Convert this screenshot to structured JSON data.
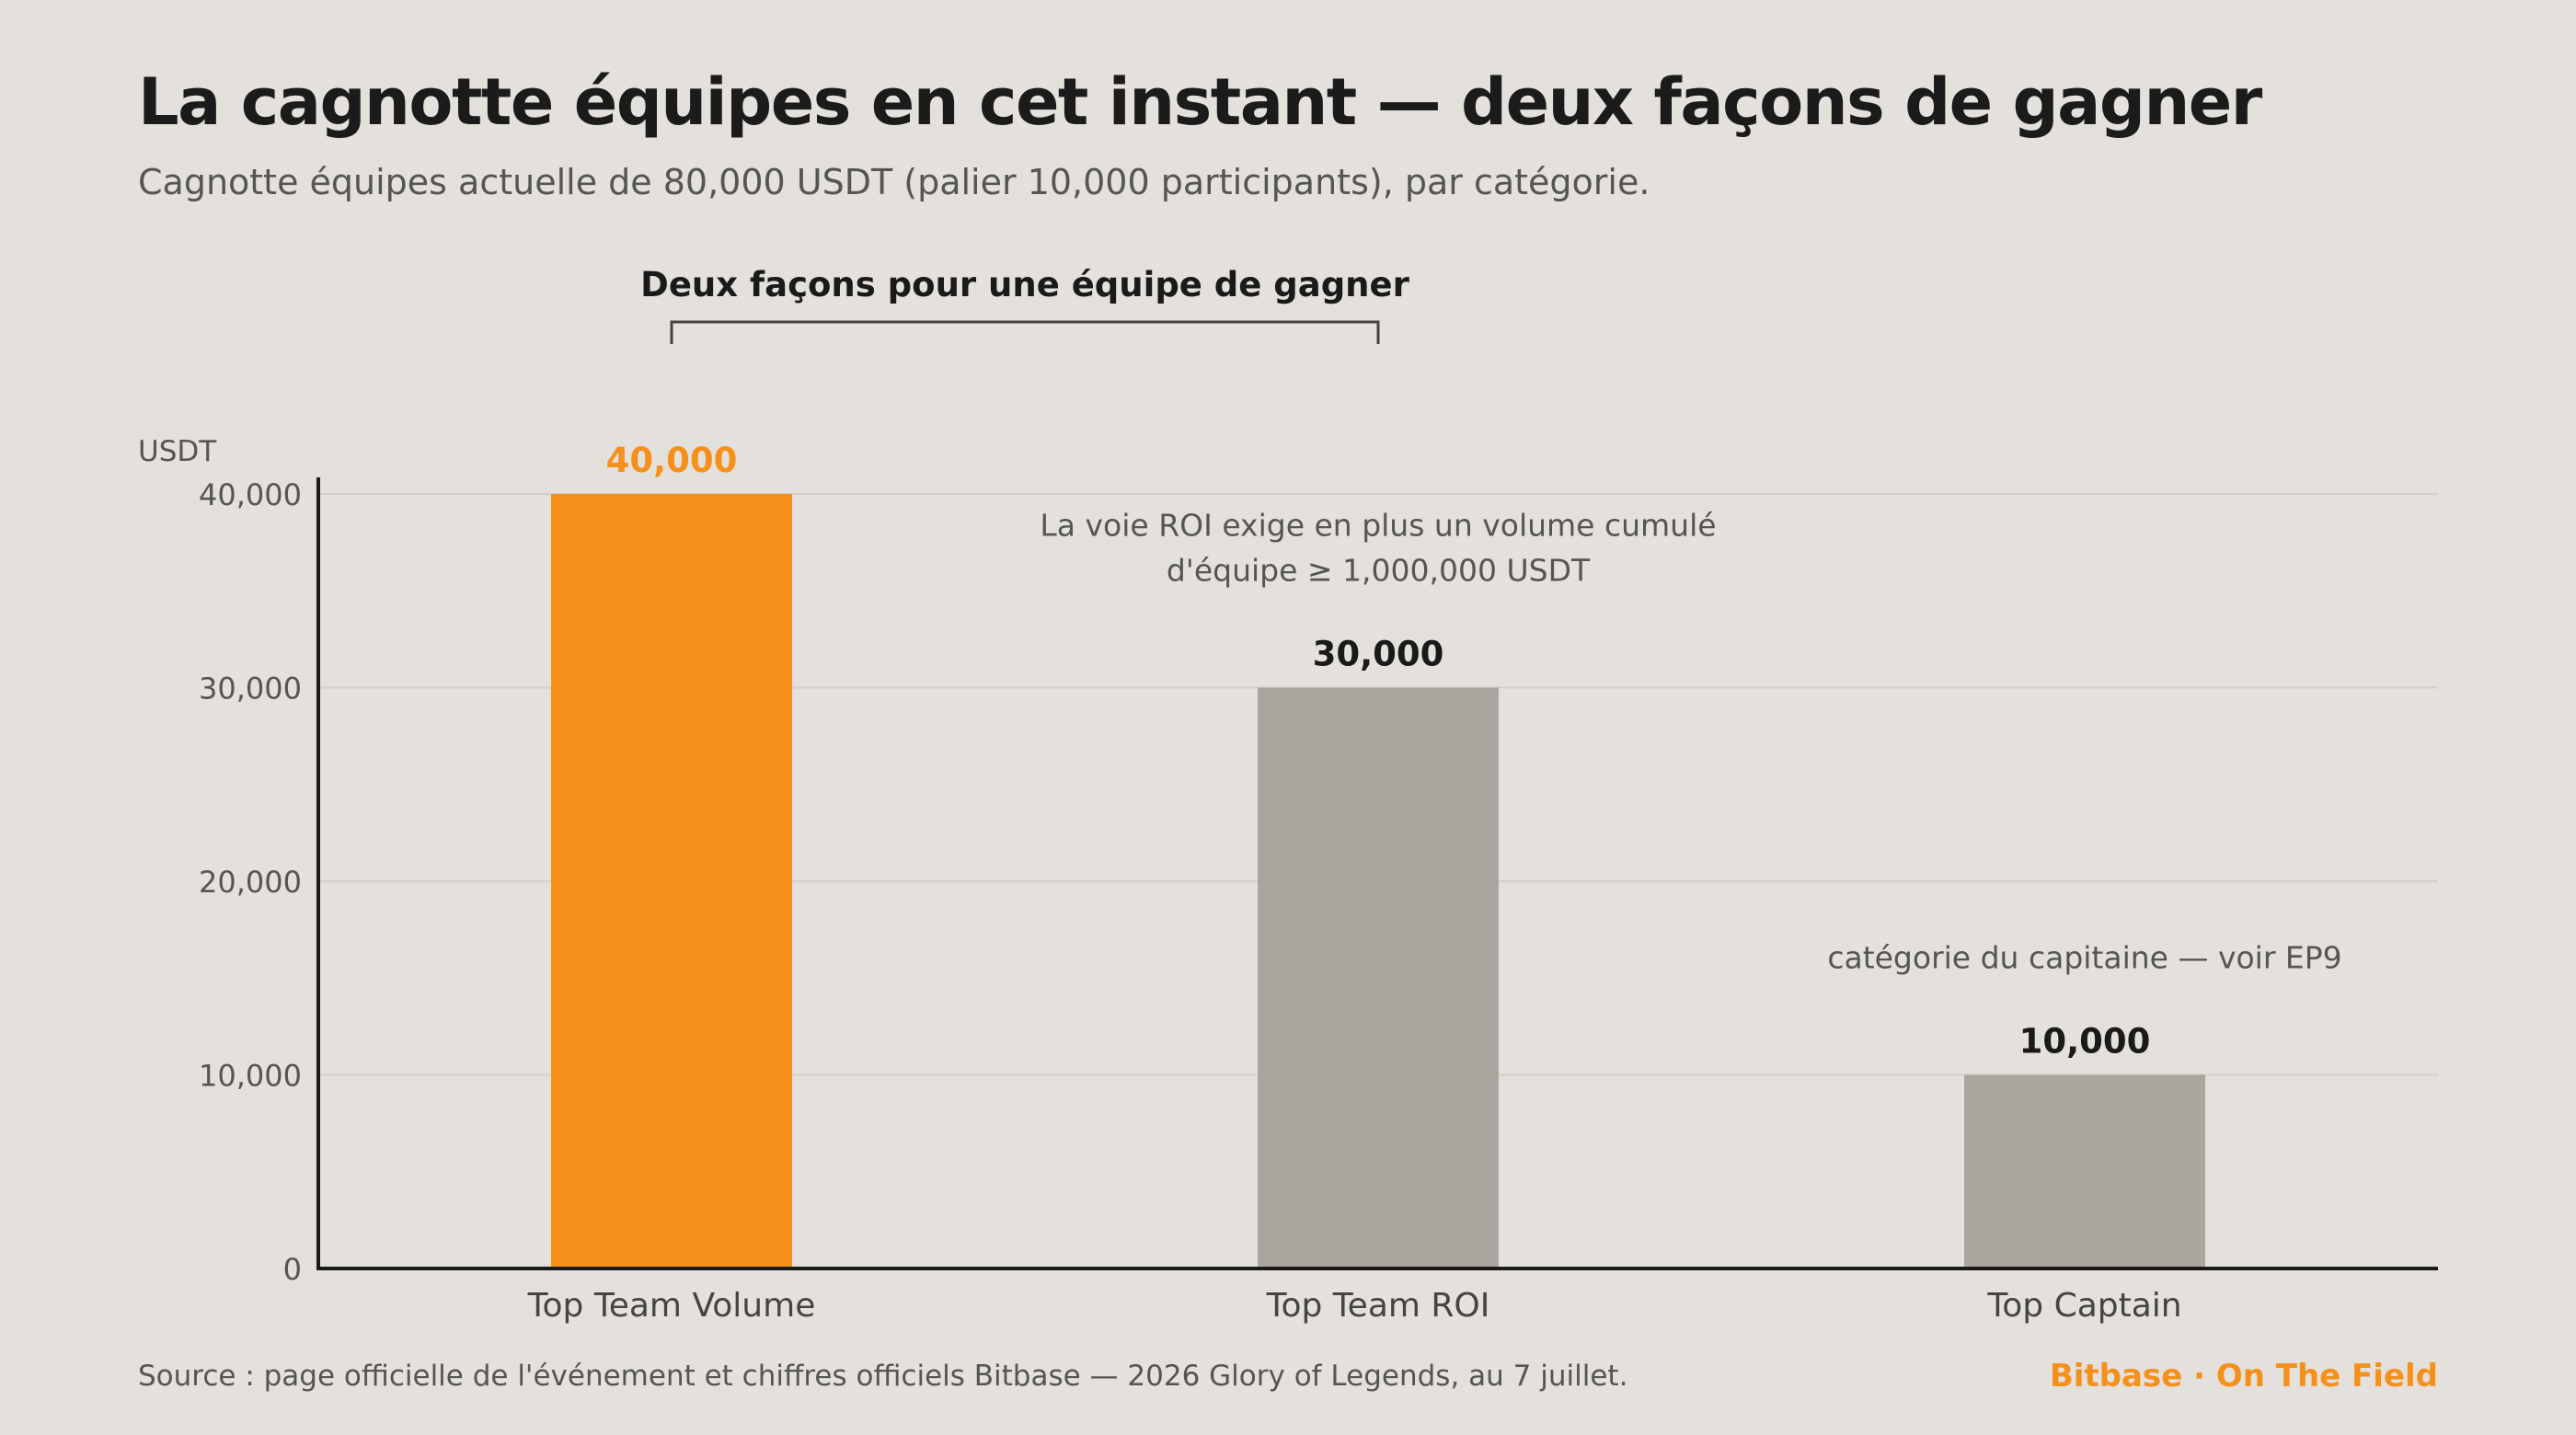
{
  "colors": {
    "background": "#e4e0db",
    "highlight": "#f5901a",
    "bar_default": "#aaa59f",
    "axis": "#1a1a1a",
    "grid": "#d3cfca",
    "muted_text": "#555555"
  },
  "chart_data": {
    "type": "bar",
    "title": "La cagnotte équipes en cet instant — deux façons de gagner",
    "subtitle": "Cagnotte équipes actuelle de 80,000 USDT (palier 10,000 participants), par catégorie.",
    "ylabel": "USDT",
    "xlabel": "",
    "ylim": [
      0,
      40000
    ],
    "yticks": [
      {
        "value": 0,
        "label": "0"
      },
      {
        "value": 10000,
        "label": "10,000"
      },
      {
        "value": 20000,
        "label": "20,000"
      },
      {
        "value": 30000,
        "label": "30,000"
      },
      {
        "value": 40000,
        "label": "40,000"
      }
    ],
    "grid": true,
    "categories": [
      "Top Team Volume",
      "Top Team ROI",
      "Top Captain"
    ],
    "values": [
      40000,
      30000,
      10000
    ],
    "value_labels": [
      "40,000",
      "30,000",
      "10,000"
    ],
    "highlight_index": 0,
    "bracket": {
      "label": "Deux façons pour une équipe de gagner",
      "from_category": 0,
      "to_category": 1
    },
    "annotations": [
      {
        "category": 1,
        "lines": [
          "La voie ROI exige en plus un volume cumulé",
          "d'équipe ≥ 1,000,000 USDT"
        ]
      },
      {
        "category": 2,
        "lines": [
          "catégorie du capitaine — voir EP9"
        ]
      }
    ]
  },
  "footer": {
    "source": "Source : page officielle de l'événement et chiffres officiels Bitbase — 2026 Glory of Legends, au 7 juillet.",
    "brand": "Bitbase · On The Field"
  }
}
